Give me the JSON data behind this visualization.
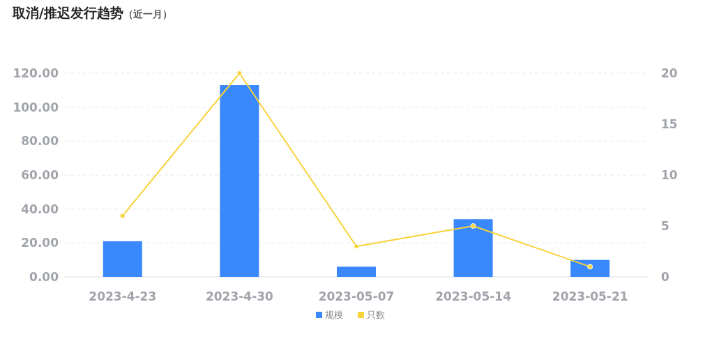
{
  "chart_data": {
    "type": "bar",
    "title": "取消/推迟发行趋势",
    "subtitle": "（近一月）",
    "categories": [
      "2023-4-23",
      "2023-4-30",
      "2023-05-07",
      "2023-05-14",
      "2023-05-21"
    ],
    "series": [
      {
        "name": "规模",
        "color": "#3a88fd",
        "values": [
          21,
          113,
          6,
          34,
          10
        ]
      },
      {
        "name": "只数",
        "type": "line",
        "axis": "y2",
        "color": "#f8d23a",
        "marker": "circle",
        "values": [
          6,
          20,
          3,
          5,
          1
        ]
      }
    ],
    "ylim": [
      0,
      120
    ],
    "yticks": [
      {
        "value": 0,
        "label": "0.00"
      },
      {
        "value": 20,
        "label": "20.00"
      },
      {
        "value": 40,
        "label": "40.00"
      },
      {
        "value": 60,
        "label": "60.00"
      },
      {
        "value": 80,
        "label": "80.00"
      },
      {
        "value": 100,
        "label": "100.00"
      },
      {
        "value": 120,
        "label": "120.00"
      }
    ],
    "y2lim": [
      0,
      20
    ],
    "y2ticks": [
      0,
      5,
      10,
      15,
      20
    ],
    "grid": "y",
    "legend": "bottom"
  }
}
